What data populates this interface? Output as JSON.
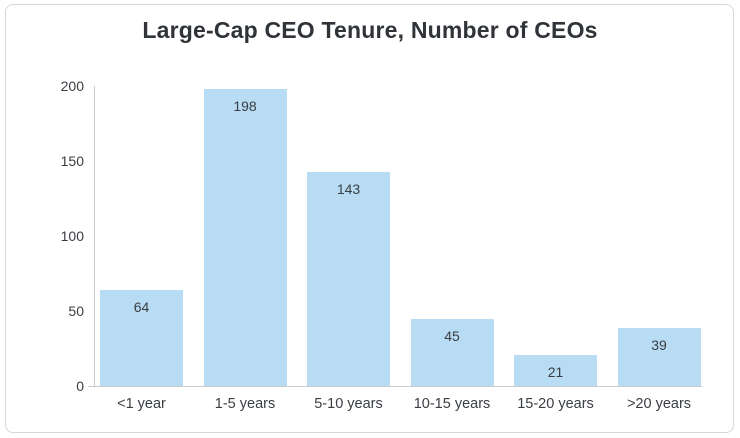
{
  "chart_data": {
    "type": "bar",
    "title": "Large-Cap CEO Tenure, Number of CEOs",
    "categories": [
      "<1 year",
      "1-5 years",
      "5-10 years",
      "10-15 years",
      "15-20 years",
      ">20 years"
    ],
    "values": [
      64,
      198,
      143,
      45,
      21,
      39
    ],
    "bar_labels_shown": true,
    "xlabel": "",
    "ylabel": "",
    "ylim": [
      0,
      200
    ],
    "yticks": [
      0,
      50,
      100,
      150,
      200
    ],
    "grid": false,
    "legend": false
  },
  "colors": {
    "bar_fill": "#b7dcf3",
    "axis_line": "#cccccc",
    "label_text": "#3a3e43",
    "title_text": "#303439",
    "card_border": "#d8d8d8",
    "background": "#ffffff"
  }
}
